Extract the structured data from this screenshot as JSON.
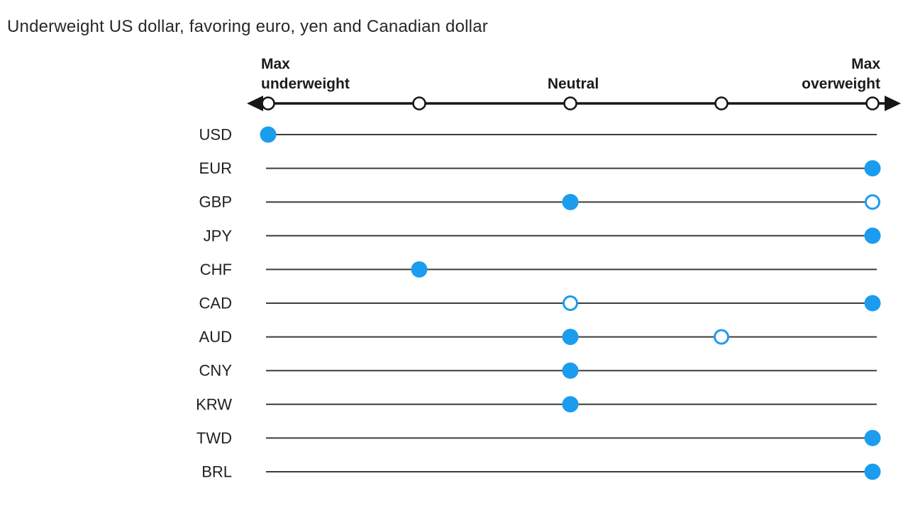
{
  "title": "Underweight US dollar, favoring euro, yen and Canadian dollar",
  "colors": {
    "accent_blue": "#1C9CEE",
    "axis_black": "#161616",
    "row_line_gray": "#3c3c3c",
    "marker_fill_white": "#ffffff"
  },
  "chart_data": {
    "type": "scatter",
    "subtype": "positioning-dot-plot",
    "title": "Underweight US dollar, favoring euro, yen and Canadian dollar",
    "axis": {
      "orientation": "horizontal",
      "range": [
        0,
        4
      ],
      "tick_positions": [
        0,
        1,
        2,
        3,
        4
      ],
      "arrow_both_ends": true,
      "labels": {
        "left_lines": [
          "Max",
          "underweight"
        ],
        "center": "Neutral",
        "right_lines": [
          "Max",
          "overweight"
        ]
      }
    },
    "marker_legend": {
      "filled_dot": "solid blue circle",
      "open_dot": "blue outlined circle"
    },
    "rows": [
      {
        "currency": "USD",
        "filled_dot": 0,
        "open_dot": null
      },
      {
        "currency": "EUR",
        "filled_dot": 4,
        "open_dot": null
      },
      {
        "currency": "GBP",
        "filled_dot": 2,
        "open_dot": 4
      },
      {
        "currency": "JPY",
        "filled_dot": 4,
        "open_dot": null
      },
      {
        "currency": "CHF",
        "filled_dot": 1,
        "open_dot": null
      },
      {
        "currency": "CAD",
        "filled_dot": 4,
        "open_dot": 2
      },
      {
        "currency": "AUD",
        "filled_dot": 2,
        "open_dot": 3
      },
      {
        "currency": "CNY",
        "filled_dot": 2,
        "open_dot": null
      },
      {
        "currency": "KRW",
        "filled_dot": 2,
        "open_dot": null
      },
      {
        "currency": "TWD",
        "filled_dot": 4,
        "open_dot": null
      },
      {
        "currency": "BRL",
        "filled_dot": 4,
        "open_dot": null
      }
    ]
  }
}
